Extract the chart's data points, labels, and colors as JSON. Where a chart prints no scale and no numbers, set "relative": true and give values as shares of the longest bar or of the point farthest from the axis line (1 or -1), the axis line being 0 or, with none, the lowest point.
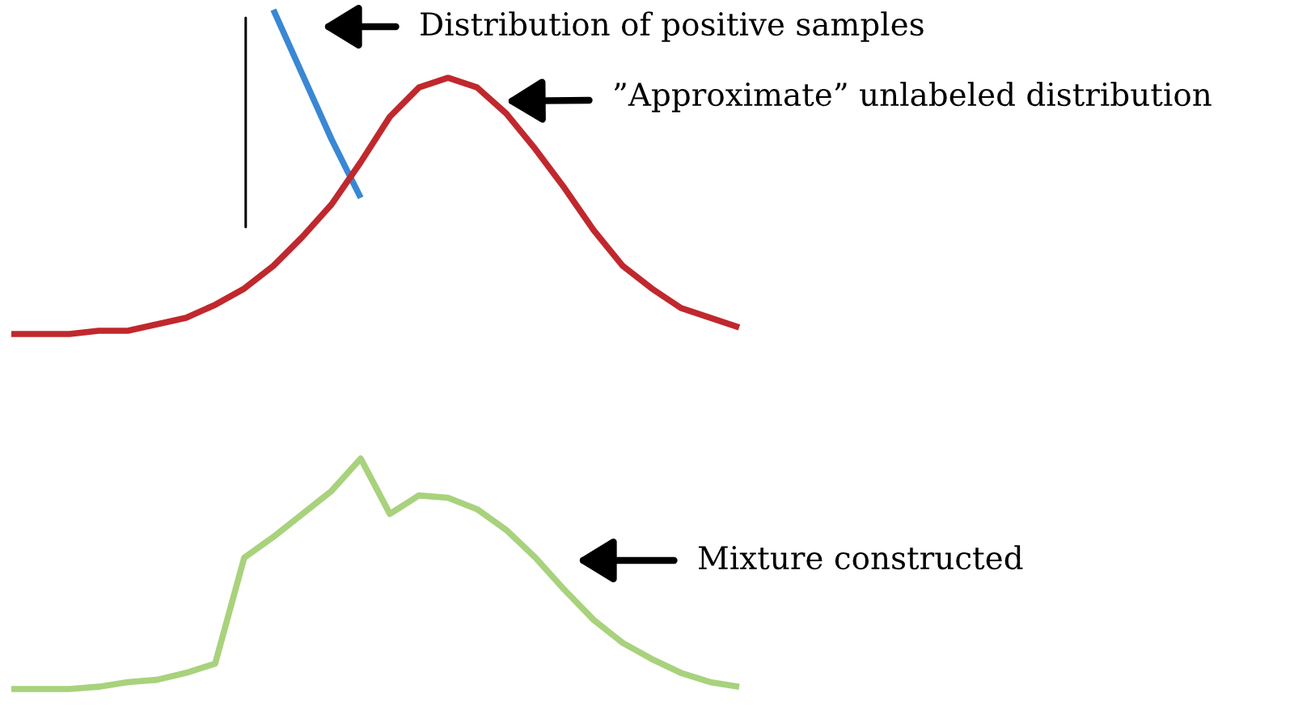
{
  "chart_data": [
    {
      "type": "line",
      "relative": true,
      "categories": [
        null,
        null,
        null,
        null,
        null,
        null,
        null,
        null,
        null,
        null,
        null,
        null,
        null,
        null,
        null,
        null,
        null,
        null,
        null,
        null,
        null,
        null,
        null,
        null,
        null,
        null
      ],
      "series": [
        {
          "color": "#3a87d4",
          "values": [
            null,
            null,
            null,
            null,
            null,
            null,
            null,
            null,
            null,
            1.0,
            0.8,
            0.6,
            0.42,
            null,
            null,
            null,
            null,
            null,
            null,
            null,
            null,
            null,
            null,
            null,
            null,
            null
          ]
        },
        {
          "color": "#c0282d",
          "values": [
            0,
            0,
            0,
            0.01,
            0.01,
            0.03,
            0.05,
            0.09,
            0.14,
            0.21,
            0.3,
            0.4,
            0.53,
            0.67,
            0.76,
            0.79,
            0.76,
            0.68,
            0.57,
            0.45,
            0.32,
            0.21,
            0.14,
            0.08,
            0.05,
            0.02
          ]
        }
      ],
      "annotations": [
        "Distribution of positive samples",
        "”Approximate” unlabeled distribution"
      ],
      "grid": false,
      "legend": false
    },
    {
      "type": "line",
      "relative": true,
      "categories": [
        null,
        null,
        null,
        null,
        null,
        null,
        null,
        null,
        null,
        null,
        null,
        null,
        null,
        null,
        null,
        null,
        null,
        null,
        null,
        null,
        null,
        null,
        null,
        null,
        null,
        null
      ],
      "series": [
        {
          "color": "#a8d27c",
          "values": [
            0,
            0,
            0,
            0.01,
            0.03,
            0.04,
            0.07,
            0.11,
            0.57,
            0.66,
            0.76,
            0.86,
            1.0,
            0.76,
            0.84,
            0.83,
            0.78,
            0.69,
            0.57,
            0.43,
            0.3,
            0.2,
            0.13,
            0.07,
            0.03,
            0.01
          ]
        }
      ],
      "annotations": [
        "Mixture constructed"
      ],
      "grid": false,
      "legend": false
    }
  ]
}
